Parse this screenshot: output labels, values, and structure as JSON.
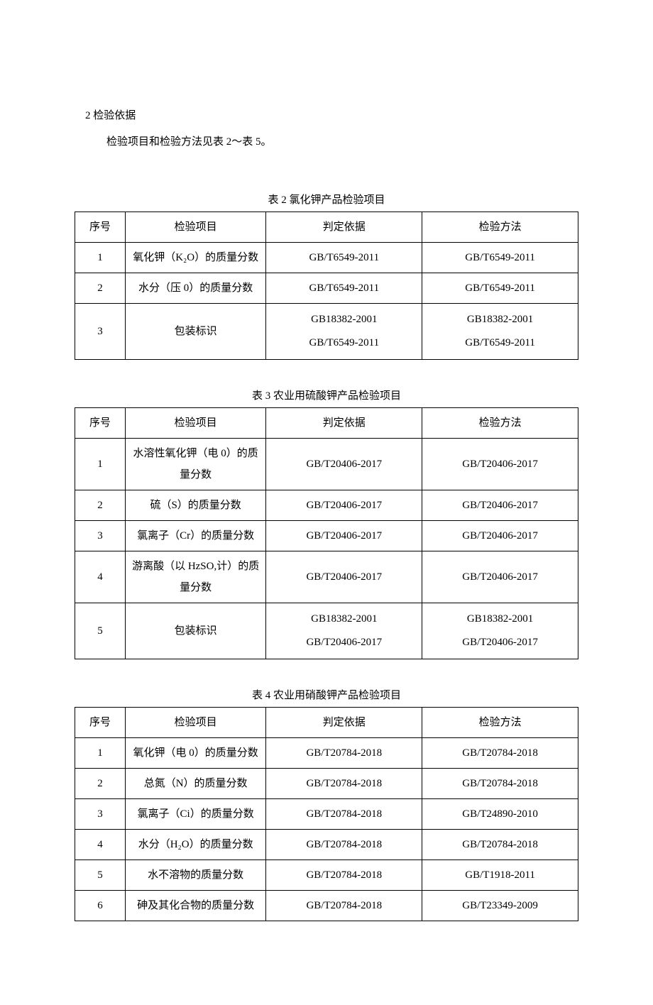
{
  "heading": "2 检验依据",
  "intro": "检验项目和检验方法见表 2～表 5。",
  "columns": {
    "c1": "序号",
    "c2": "检验项目",
    "c3": "判定依据",
    "c4": "检验方法"
  },
  "table2": {
    "caption": "表 2 氯化钾产品检验项目",
    "rows": [
      {
        "n": "1",
        "item": "氧化钾（K₂O）的质量分数",
        "basis": "GB/T6549-2011",
        "method": "GB/T6549-2011"
      },
      {
        "n": "2",
        "item": "水分（压 0）的质量分数",
        "basis": "GB/T6549-2011",
        "method": "GB/T6549-2011"
      },
      {
        "n": "3",
        "item": "包装标识",
        "basis1": "GB18382-2001",
        "basis2": "GB/T6549-2011",
        "method1": "GB18382-2001",
        "method2": "GB/T6549-2011"
      }
    ]
  },
  "table3": {
    "caption": "表 3 农业用硫酸钾产品检验项目",
    "rows": [
      {
        "n": "1",
        "item": "水溶性氧化钾（电 0）的质量分数",
        "basis": "GB/T20406-2017",
        "method": "GB/T20406-2017"
      },
      {
        "n": "2",
        "item": "硫（S）的质量分数",
        "basis": "GB/T20406-2017",
        "method": "GB/T20406-2017"
      },
      {
        "n": "3",
        "item": "氯离子（Cr）的质量分数",
        "basis": "GB/T20406-2017",
        "method": "GB/T20406-2017"
      },
      {
        "n": "4",
        "item": "游离酸（以 HzSO,计）的质量分数",
        "basis": "GB/T20406-2017",
        "method": "GB/T20406-2017"
      },
      {
        "n": "5",
        "item": "包装标识",
        "basis1": "GB18382-2001",
        "basis2": "GB/T20406-2017",
        "method1": "GB18382-2001",
        "method2": "GB/T20406-2017"
      }
    ]
  },
  "table4": {
    "caption": "表 4 农业用硝酸钾产品检验项目",
    "rows": [
      {
        "n": "1",
        "item": "氧化钾（电 0）的质量分数",
        "basis": "GB/T20784-2018",
        "method": "GB/T20784-2018"
      },
      {
        "n": "2",
        "item": "总氮（N）的质量分数",
        "basis": "GB/T20784-2018",
        "method": "GB/T20784-2018"
      },
      {
        "n": "3",
        "item": "氯离子（Ci）的质量分数",
        "basis": "GB/T20784-2018",
        "method": "GB/T24890-2010"
      },
      {
        "n": "4",
        "item": "水分（H₂O）的质量分数",
        "basis": "GB/T20784-2018",
        "method": "GB/T20784-2018"
      },
      {
        "n": "5",
        "item": "水不溶物的质量分数",
        "basis": "GB/T20784-2018",
        "method": "GB/T1918-2011"
      },
      {
        "n": "6",
        "item": "砷及其化合物的质量分数",
        "basis": "GB/T20784-2018",
        "method": "GB/T23349-2009"
      }
    ]
  }
}
